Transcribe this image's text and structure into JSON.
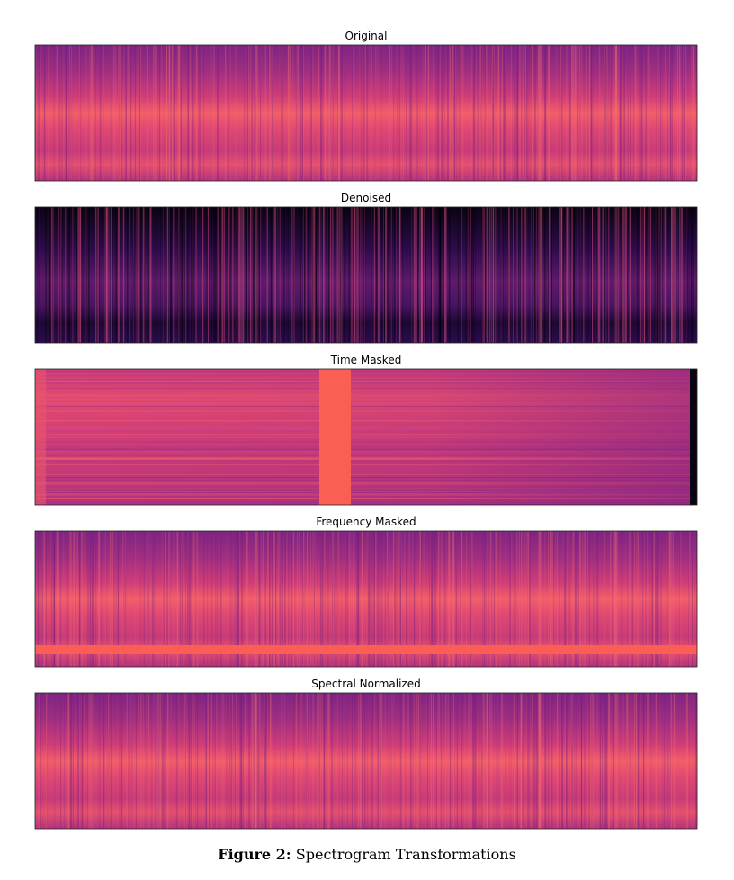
{
  "panels": [
    {
      "title": "Original"
    },
    {
      "title": "Denoised"
    },
    {
      "title": "Time Masked"
    },
    {
      "title": "Frequency Masked"
    },
    {
      "title": "Spectral Normalized"
    }
  ],
  "caption": {
    "label": "Figure 2:",
    "text": "Spectrogram Transformations"
  }
}
